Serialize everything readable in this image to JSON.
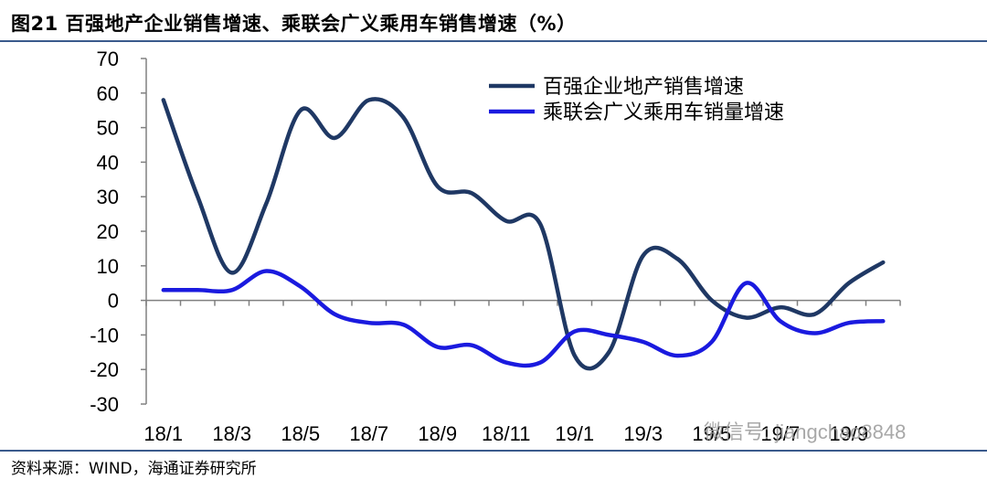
{
  "title": "图21 百强地产企业销售增速、乘联会广义乘用车销售增速（%）",
  "source": "资料来源：WIND，海通证券研究所",
  "watermark": "微信号: jiangchao8848",
  "colors": {
    "series1": "#1f3864",
    "series2": "#1a1adf",
    "rule": "#3a5a8c",
    "axis": "#808080"
  },
  "chart_data": {
    "type": "line",
    "title": "",
    "xlabel": "",
    "ylabel": "",
    "ylim": [
      -30,
      70
    ],
    "yticks": [
      70,
      60,
      50,
      40,
      30,
      20,
      10,
      0,
      -10,
      -20,
      -30
    ],
    "grid": false,
    "legend_position": "top-right",
    "x": [
      "18/1",
      "18/2",
      "18/3",
      "18/4",
      "18/5",
      "18/6",
      "18/7",
      "18/8",
      "18/9",
      "18/10",
      "18/11",
      "18/12",
      "19/1",
      "19/2",
      "19/3",
      "19/4",
      "19/5",
      "19/6",
      "19/7",
      "19/8",
      "19/9",
      "19/10"
    ],
    "x_tick_labels": [
      "18/1",
      "18/3",
      "18/5",
      "18/7",
      "18/9",
      "18/11",
      "19/1",
      "19/3",
      "19/5",
      "19/7",
      "19/9"
    ],
    "series": [
      {
        "name": "百强企业地产销售增速",
        "values": [
          58,
          30,
          8,
          28,
          55,
          47,
          58,
          53,
          33,
          31,
          23,
          22,
          -16,
          -15,
          13,
          12,
          0,
          -5,
          -2,
          -4,
          5,
          11
        ]
      },
      {
        "name": "乘联会广义乘用车销量增速",
        "values": [
          3,
          3,
          3,
          8.5,
          4,
          -4,
          -6.5,
          -7,
          -13.5,
          -13,
          -18,
          -18,
          -9,
          -10,
          -12,
          -16,
          -12,
          5,
          -6,
          -9.5,
          -6.5,
          -6
        ]
      }
    ]
  }
}
